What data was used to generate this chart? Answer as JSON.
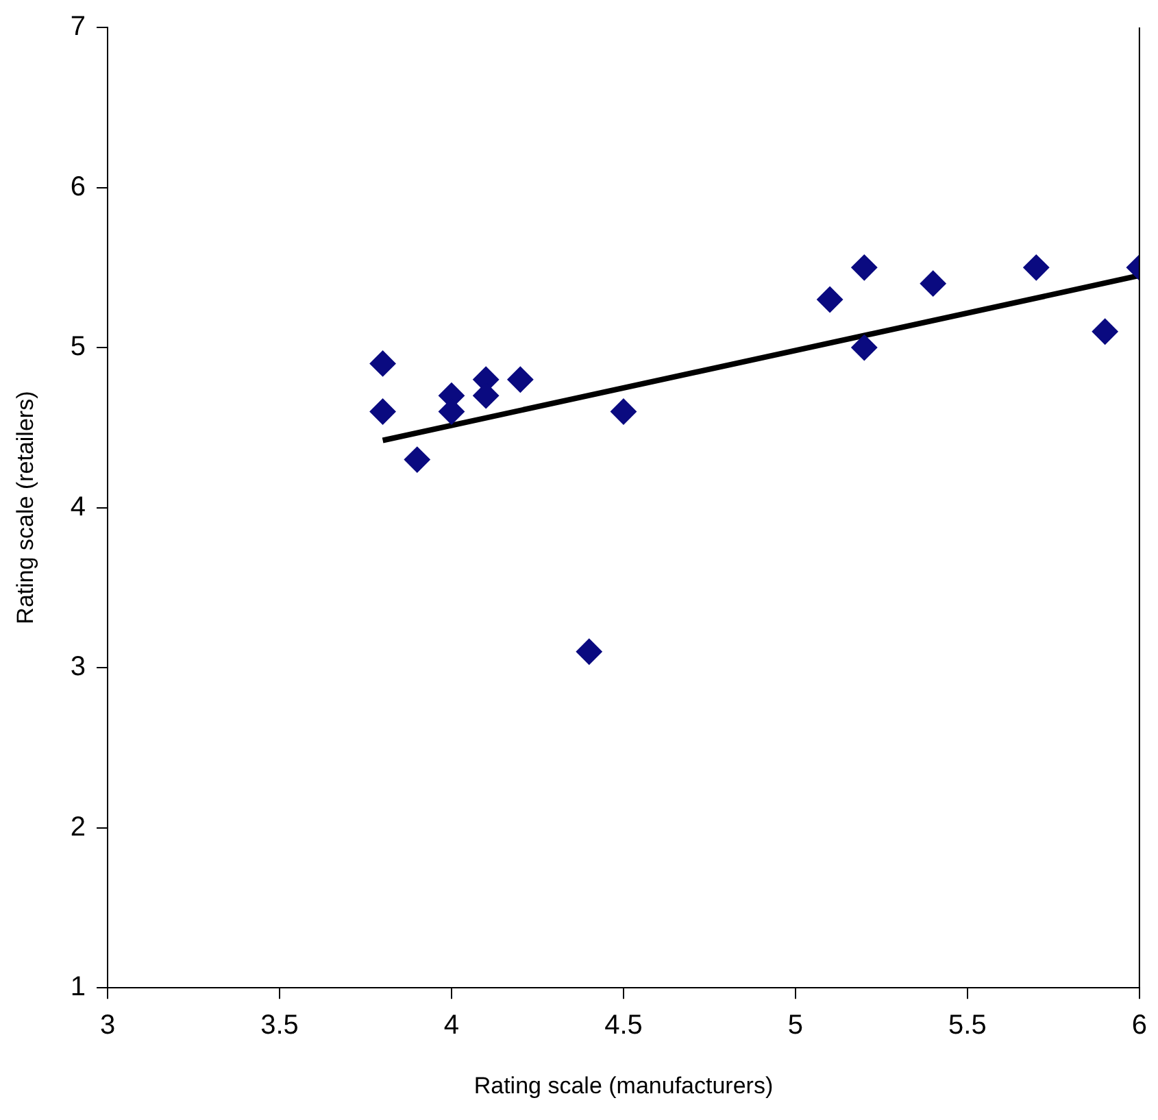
{
  "chart_data": {
    "type": "scatter",
    "xlabel": "Rating scale (manufacturers)",
    "ylabel": "Rating scale (retailers)",
    "xlim": [
      3,
      6
    ],
    "xticks": [
      3,
      3.5,
      4,
      4.5,
      5,
      5.5,
      6
    ],
    "ylim": [
      1,
      7
    ],
    "yticks": [
      1,
      2,
      3,
      4,
      5,
      6,
      7
    ],
    "grid": false,
    "legend": false,
    "marker": "diamond",
    "series": [
      {
        "color": "#0a0a80",
        "x": [
          3.8,
          3.8,
          3.9,
          4.0,
          4.0,
          4.1,
          4.1,
          4.2,
          4.4,
          4.5,
          5.1,
          5.2,
          5.2,
          5.4,
          5.7,
          5.9,
          6.0
        ],
        "values": [
          4.9,
          4.6,
          4.3,
          4.7,
          4.6,
          4.8,
          4.7,
          4.8,
          3.1,
          4.6,
          5.3,
          5.5,
          5.0,
          5.4,
          5.5,
          5.1,
          5.5
        ]
      },
      {
        "type": "line",
        "color": "#000000",
        "marker": "none",
        "x": [
          3.8,
          6.0
        ],
        "values": [
          4.42,
          5.45
        ]
      }
    ]
  }
}
